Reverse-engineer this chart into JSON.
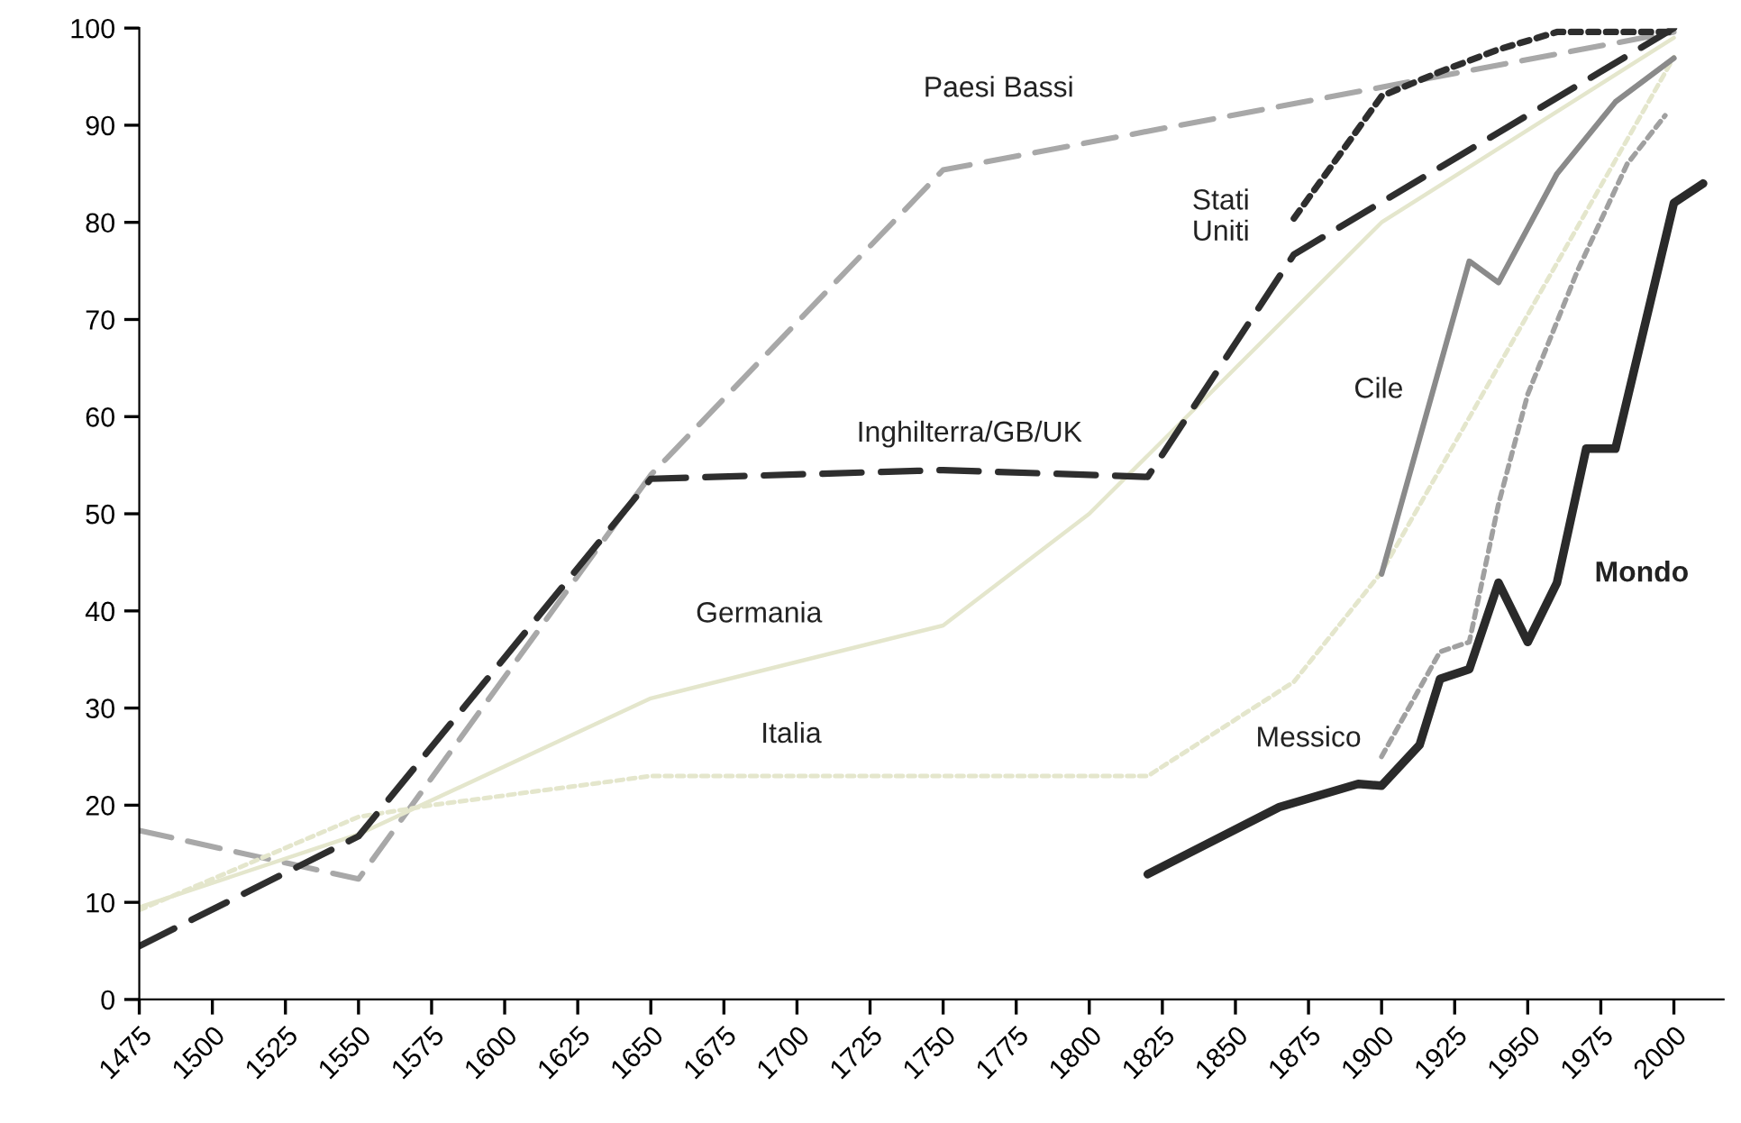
{
  "chart_data": {
    "type": "line",
    "xlim": [
      1475,
      2017
    ],
    "ylim": [
      0,
      100
    ],
    "xticks": [
      1475,
      1500,
      1525,
      1550,
      1575,
      1600,
      1625,
      1650,
      1675,
      1700,
      1725,
      1750,
      1775,
      1800,
      1825,
      1850,
      1875,
      1900,
      1925,
      1950,
      1975,
      2000
    ],
    "yticks": [
      0,
      10,
      20,
      30,
      40,
      50,
      60,
      70,
      80,
      90,
      100
    ],
    "grid": false,
    "legend": false,
    "marker": "none",
    "series": [
      {
        "name": "Paesi Bassi",
        "color": "#a8a8a8",
        "line_style": "dashed",
        "x": [
          1475,
          1550,
          1650,
          1750,
          2000
        ],
        "values": [
          17.4,
          12.4,
          54,
          85.4,
          99.6
        ]
      },
      {
        "name": "Germania",
        "color": "#e4e6cc",
        "line_style": "solid",
        "x": [
          1475,
          1550,
          1650,
          1750,
          1800,
          1900,
          2000
        ],
        "values": [
          9.5,
          17,
          31,
          38.5,
          50,
          80,
          99
        ]
      },
      {
        "name": "Italia",
        "color": "#e4e6cc",
        "line_style": "dotted",
        "x": [
          1475,
          1550,
          1575,
          1650,
          1750,
          1820,
          1870,
          1900,
          2000
        ],
        "values": [
          9.2,
          18.8,
          20,
          23,
          23,
          23,
          32.7,
          44,
          97
        ]
      },
      {
        "name": "Inghilterra/GB/UK",
        "color": "#2e2e2e",
        "line_style": "dashed",
        "x": [
          1475,
          1550,
          1650,
          1750,
          1820,
          1870,
          2000
        ],
        "values": [
          5.5,
          16.8,
          53.6,
          54.5,
          53.8,
          76.7,
          100
        ]
      },
      {
        "name": "Stati\nUniti",
        "color": "#2e2e2e",
        "line_style": "dotted",
        "x": [
          1870,
          1900,
          1920,
          1940,
          1960,
          1980,
          2000
        ],
        "values": [
          80.4,
          93,
          95.5,
          97.8,
          99.6,
          99.6,
          99.6
        ]
      },
      {
        "name": "Cile",
        "color": "#8a8a8a",
        "line_style": "solid",
        "x": [
          1900,
          1930,
          1940,
          1960,
          1980,
          2000
        ],
        "values": [
          43.8,
          76,
          73.8,
          85,
          92.4,
          96.9
        ]
      },
      {
        "name": "Messico",
        "color": "#a0a0a0",
        "line_style": "dotted",
        "x": [
          1900,
          1920,
          1930,
          1940,
          1950,
          1967,
          1984,
          1997
        ],
        "values": [
          25,
          35.8,
          36.8,
          51,
          62.3,
          75,
          86,
          91
        ]
      },
      {
        "name": "Mondo",
        "color": "#2a2a2a",
        "line_style": "solid",
        "x": [
          1820,
          1865,
          1892,
          1900,
          1913,
          1920,
          1930,
          1940,
          1950,
          1960,
          1970,
          1980,
          2000,
          2010
        ],
        "values": [
          12.9,
          19.8,
          22.2,
          22,
          26.2,
          33,
          34,
          42.9,
          36.8,
          42.9,
          56.7,
          56.7,
          82,
          84
        ]
      }
    ]
  }
}
